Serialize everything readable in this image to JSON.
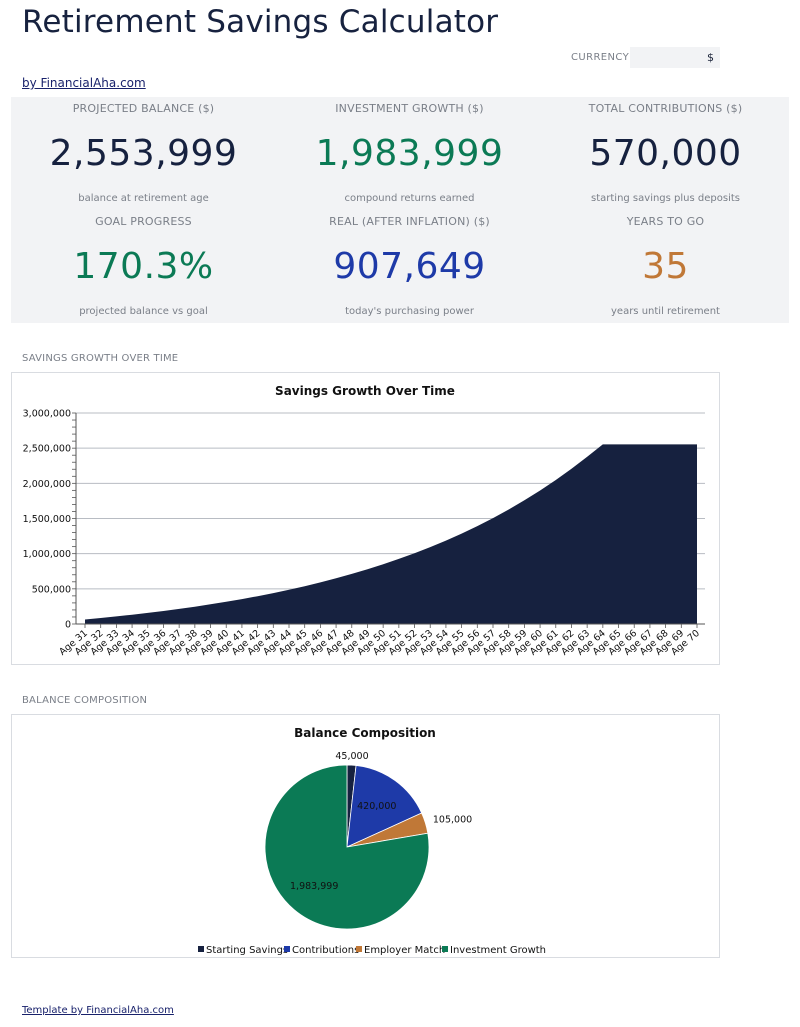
{
  "header": {
    "title": "Retirement Savings Calculator",
    "currency_label": "CURRENCY",
    "currency_value": "$",
    "brand_link": "by FinancialAha.com"
  },
  "kpis": [
    {
      "label": "PROJECTED BALANCE ($)",
      "value": "2,553,999",
      "sub": "balance at retirement age",
      "color": "#16213f"
    },
    {
      "label": "INVESTMENT GROWTH ($)",
      "value": "1,983,999",
      "sub": "compound returns earned",
      "color": "#0b7a55"
    },
    {
      "label": "TOTAL CONTRIBUTIONS ($)",
      "value": "570,000",
      "sub": "starting savings plus deposits",
      "color": "#16213f"
    },
    {
      "label": "GOAL PROGRESS",
      "value": "170.3%",
      "sub": "projected balance vs goal",
      "color": "#0b7a55"
    },
    {
      "label": "REAL (AFTER INFLATION) ($)",
      "value": "907,649",
      "sub": "today's purchasing power",
      "color": "#1e3aa8"
    },
    {
      "label": "YEARS TO GO",
      "value": "35",
      "sub": "years until retirement",
      "color": "#c07837"
    }
  ],
  "sections": {
    "growth_label": "SAVINGS GROWTH OVER TIME",
    "composition_label": "BALANCE COMPOSITION"
  },
  "footer": {
    "link": "Template by FinancialAha.com"
  },
  "colors": {
    "area_fill": "#16213f",
    "grid": "#b8bcc3",
    "starting_savings": "#16213f",
    "contributions": "#1e3aa8",
    "employer_match": "#c07837",
    "investment_growth": "#0b7a55"
  },
  "chart_data": [
    {
      "type": "area",
      "title": "Savings Growth Over Time",
      "xlabel": "",
      "ylabel": "",
      "categories": [
        "Age 31",
        "Age 32",
        "Age 33",
        "Age 34",
        "Age 35",
        "Age 36",
        "Age 37",
        "Age 38",
        "Age 39",
        "Age 40",
        "Age 41",
        "Age 42",
        "Age 43",
        "Age 44",
        "Age 45",
        "Age 46",
        "Age 47",
        "Age 48",
        "Age 49",
        "Age 50",
        "Age 51",
        "Age 52",
        "Age 53",
        "Age 54",
        "Age 55",
        "Age 56",
        "Age 57",
        "Age 58",
        "Age 59",
        "Age 60",
        "Age 61",
        "Age 62",
        "Age 63",
        "Age 64",
        "Age 65",
        "Age 66",
        "Age 67",
        "Age 68",
        "Age 69",
        "Age 70"
      ],
      "series": [
        {
          "values": [
            64500,
            85400,
            107800,
            131800,
            157500,
            185000,
            214400,
            245900,
            279600,
            315700,
            354300,
            395600,
            439800,
            487100,
            537700,
            591800,
            649700,
            711700,
            778000,
            849000,
            924900,
            1006200,
            1093100,
            1186100,
            1285700,
            1392200,
            1506200,
            1628100,
            1758600,
            1898200,
            2047500,
            2207300,
            2378300,
            2553999,
            2553999,
            2553999,
            2553999,
            2553999,
            2553999,
            2553999
          ]
        }
      ],
      "ylim": [
        0,
        3000000
      ],
      "yticks": [
        0,
        500000,
        1000000,
        1500000,
        2000000,
        2500000,
        3000000
      ],
      "ytick_labels": [
        "0",
        "500,000",
        "1,000,000",
        "1,500,000",
        "2,000,000",
        "2,500,000",
        "3,000,000"
      ],
      "grid": true
    },
    {
      "type": "pie",
      "title": "Balance Composition",
      "categories": [
        "Starting Savings",
        "Contributions",
        "Employer Match",
        "Investment Growth"
      ],
      "values": [
        45000,
        420000,
        105000,
        1983999
      ],
      "value_labels": [
        "45,000",
        "420,000",
        "105,000",
        "1,983,999"
      ],
      "legend": "bottom"
    }
  ]
}
